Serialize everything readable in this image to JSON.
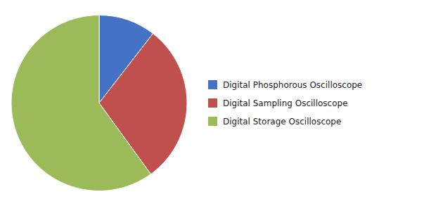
{
  "chart_data": {
    "type": "pie",
    "categories": [
      "Digital Phosphorous Oscilloscope",
      "Digital Sampling Oscilloscope",
      "Digital Storage Oscilloscope"
    ],
    "values": [
      10.5,
      29.5,
      60.0
    ],
    "colors": [
      "#4472C4",
      "#C0504D",
      "#9BBB59"
    ],
    "legend": "right"
  }
}
